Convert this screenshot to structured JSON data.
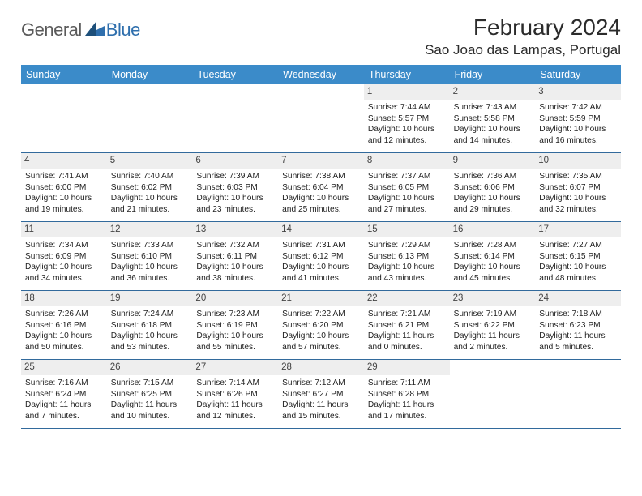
{
  "logo": {
    "general": "General",
    "blue": "Blue"
  },
  "header": {
    "month_year": "February 2024",
    "location": "Sao Joao das Lampas, Portugal"
  },
  "colors": {
    "header_bg": "#3b8bc9",
    "header_text": "#ffffff",
    "week_border": "#326a9c",
    "daynum_bg": "#eeeeee",
    "body_text": "#222222",
    "logo_gray": "#5a5a5a",
    "logo_blue": "#2f6fad"
  },
  "weekdays": [
    "Sunday",
    "Monday",
    "Tuesday",
    "Wednesday",
    "Thursday",
    "Friday",
    "Saturday"
  ],
  "weeks": [
    [
      null,
      null,
      null,
      null,
      {
        "n": "1",
        "sr": "Sunrise: 7:44 AM",
        "ss": "Sunset: 5:57 PM",
        "d1": "Daylight: 10 hours",
        "d2": "and 12 minutes."
      },
      {
        "n": "2",
        "sr": "Sunrise: 7:43 AM",
        "ss": "Sunset: 5:58 PM",
        "d1": "Daylight: 10 hours",
        "d2": "and 14 minutes."
      },
      {
        "n": "3",
        "sr": "Sunrise: 7:42 AM",
        "ss": "Sunset: 5:59 PM",
        "d1": "Daylight: 10 hours",
        "d2": "and 16 minutes."
      }
    ],
    [
      {
        "n": "4",
        "sr": "Sunrise: 7:41 AM",
        "ss": "Sunset: 6:00 PM",
        "d1": "Daylight: 10 hours",
        "d2": "and 19 minutes."
      },
      {
        "n": "5",
        "sr": "Sunrise: 7:40 AM",
        "ss": "Sunset: 6:02 PM",
        "d1": "Daylight: 10 hours",
        "d2": "and 21 minutes."
      },
      {
        "n": "6",
        "sr": "Sunrise: 7:39 AM",
        "ss": "Sunset: 6:03 PM",
        "d1": "Daylight: 10 hours",
        "d2": "and 23 minutes."
      },
      {
        "n": "7",
        "sr": "Sunrise: 7:38 AM",
        "ss": "Sunset: 6:04 PM",
        "d1": "Daylight: 10 hours",
        "d2": "and 25 minutes."
      },
      {
        "n": "8",
        "sr": "Sunrise: 7:37 AM",
        "ss": "Sunset: 6:05 PM",
        "d1": "Daylight: 10 hours",
        "d2": "and 27 minutes."
      },
      {
        "n": "9",
        "sr": "Sunrise: 7:36 AM",
        "ss": "Sunset: 6:06 PM",
        "d1": "Daylight: 10 hours",
        "d2": "and 29 minutes."
      },
      {
        "n": "10",
        "sr": "Sunrise: 7:35 AM",
        "ss": "Sunset: 6:07 PM",
        "d1": "Daylight: 10 hours",
        "d2": "and 32 minutes."
      }
    ],
    [
      {
        "n": "11",
        "sr": "Sunrise: 7:34 AM",
        "ss": "Sunset: 6:09 PM",
        "d1": "Daylight: 10 hours",
        "d2": "and 34 minutes."
      },
      {
        "n": "12",
        "sr": "Sunrise: 7:33 AM",
        "ss": "Sunset: 6:10 PM",
        "d1": "Daylight: 10 hours",
        "d2": "and 36 minutes."
      },
      {
        "n": "13",
        "sr": "Sunrise: 7:32 AM",
        "ss": "Sunset: 6:11 PM",
        "d1": "Daylight: 10 hours",
        "d2": "and 38 minutes."
      },
      {
        "n": "14",
        "sr": "Sunrise: 7:31 AM",
        "ss": "Sunset: 6:12 PM",
        "d1": "Daylight: 10 hours",
        "d2": "and 41 minutes."
      },
      {
        "n": "15",
        "sr": "Sunrise: 7:29 AM",
        "ss": "Sunset: 6:13 PM",
        "d1": "Daylight: 10 hours",
        "d2": "and 43 minutes."
      },
      {
        "n": "16",
        "sr": "Sunrise: 7:28 AM",
        "ss": "Sunset: 6:14 PM",
        "d1": "Daylight: 10 hours",
        "d2": "and 45 minutes."
      },
      {
        "n": "17",
        "sr": "Sunrise: 7:27 AM",
        "ss": "Sunset: 6:15 PM",
        "d1": "Daylight: 10 hours",
        "d2": "and 48 minutes."
      }
    ],
    [
      {
        "n": "18",
        "sr": "Sunrise: 7:26 AM",
        "ss": "Sunset: 6:16 PM",
        "d1": "Daylight: 10 hours",
        "d2": "and 50 minutes."
      },
      {
        "n": "19",
        "sr": "Sunrise: 7:24 AM",
        "ss": "Sunset: 6:18 PM",
        "d1": "Daylight: 10 hours",
        "d2": "and 53 minutes."
      },
      {
        "n": "20",
        "sr": "Sunrise: 7:23 AM",
        "ss": "Sunset: 6:19 PM",
        "d1": "Daylight: 10 hours",
        "d2": "and 55 minutes."
      },
      {
        "n": "21",
        "sr": "Sunrise: 7:22 AM",
        "ss": "Sunset: 6:20 PM",
        "d1": "Daylight: 10 hours",
        "d2": "and 57 minutes."
      },
      {
        "n": "22",
        "sr": "Sunrise: 7:21 AM",
        "ss": "Sunset: 6:21 PM",
        "d1": "Daylight: 11 hours",
        "d2": "and 0 minutes."
      },
      {
        "n": "23",
        "sr": "Sunrise: 7:19 AM",
        "ss": "Sunset: 6:22 PM",
        "d1": "Daylight: 11 hours",
        "d2": "and 2 minutes."
      },
      {
        "n": "24",
        "sr": "Sunrise: 7:18 AM",
        "ss": "Sunset: 6:23 PM",
        "d1": "Daylight: 11 hours",
        "d2": "and 5 minutes."
      }
    ],
    [
      {
        "n": "25",
        "sr": "Sunrise: 7:16 AM",
        "ss": "Sunset: 6:24 PM",
        "d1": "Daylight: 11 hours",
        "d2": "and 7 minutes."
      },
      {
        "n": "26",
        "sr": "Sunrise: 7:15 AM",
        "ss": "Sunset: 6:25 PM",
        "d1": "Daylight: 11 hours",
        "d2": "and 10 minutes."
      },
      {
        "n": "27",
        "sr": "Sunrise: 7:14 AM",
        "ss": "Sunset: 6:26 PM",
        "d1": "Daylight: 11 hours",
        "d2": "and 12 minutes."
      },
      {
        "n": "28",
        "sr": "Sunrise: 7:12 AM",
        "ss": "Sunset: 6:27 PM",
        "d1": "Daylight: 11 hours",
        "d2": "and 15 minutes."
      },
      {
        "n": "29",
        "sr": "Sunrise: 7:11 AM",
        "ss": "Sunset: 6:28 PM",
        "d1": "Daylight: 11 hours",
        "d2": "and 17 minutes."
      },
      null,
      null
    ]
  ]
}
